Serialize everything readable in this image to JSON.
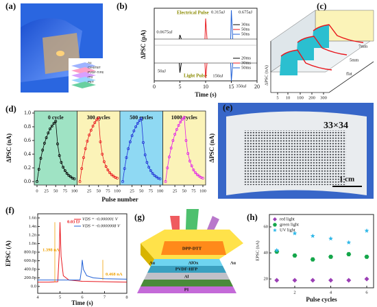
{
  "panel_a": {
    "label": "(a)",
    "layers": [
      "Au",
      "C8-BTBT",
      "PVDF-TrFE",
      "ITO",
      "PET"
    ]
  },
  "panel_e": {
    "label": "(e)",
    "array": "33×34",
    "scale": "1 cm"
  },
  "panel_g": {
    "label": "(g)",
    "layers": [
      "DPP-DTT",
      "AlOx",
      "PVDF-HFP",
      "Al",
      "PI",
      "Au",
      "Au"
    ]
  },
  "chart_data": [
    {
      "type": "pulse",
      "label": "(b)",
      "xlabel": "Time (s)",
      "ylabel": "ΔPSC (pA)",
      "xlim": [
        0,
        20
      ],
      "xticks": [
        0,
        5,
        10,
        15,
        20
      ],
      "series": [
        {
          "name": "Electrical Pulse",
          "color": "#8a8a00",
          "x": [
            5,
            10,
            15
          ],
          "annotations": [
            "0.0675aJ",
            "0.315aJ",
            "0.675aJ"
          ],
          "legend": [
            "30ns",
            "50ns",
            "50ns"
          ],
          "colors": [
            "#000000",
            "#e8151b",
            "#1f5fd6"
          ]
        },
        {
          "name": "Light Pulse",
          "color": "#8a8a00",
          "x": [
            5,
            10,
            15
          ],
          "annotations": [
            "50aJ",
            "150aJ",
            "350aJ"
          ],
          "legend": [
            "20ms",
            "30ms",
            "50ms"
          ],
          "colors": [
            "#000000",
            "#e8151b",
            "#1f5fd6"
          ]
        }
      ]
    },
    {
      "type": "surface3d",
      "label": "(c)",
      "ylabel": "ΔPSC (nA)",
      "xticks": [
        5,
        10,
        100,
        200,
        300
      ],
      "series_names": [
        "7mm",
        "5mm",
        "flat"
      ]
    },
    {
      "type": "multiline",
      "label": "(d)",
      "xlabel": "Pulse number",
      "ylabel": "ΔPSC (nA)",
      "ylabel2": "ΔPSC (nA)",
      "ylim": [
        -0.05,
        1.03
      ],
      "yticks": [
        {
          "value": 0,
          "label": "0.0"
        },
        {
          "value": 0.2,
          "label": "0.2"
        },
        {
          "value": 0.4,
          "label": "0.4"
        },
        {
          "value": 0.6,
          "label": "0.6"
        },
        {
          "value": 0.8,
          "label": "0.8"
        },
        {
          "value": 1,
          "label": "1.0"
        }
      ],
      "xlim": [
        0,
        100
      ],
      "x": [
        0,
        5,
        10,
        15,
        20,
        25,
        30,
        35,
        40,
        45,
        50,
        55,
        60,
        65,
        70,
        75,
        80,
        85,
        90,
        95,
        100
      ],
      "series": [
        {
          "name": "0 cycle",
          "color": "#000000",
          "background": "#9fe3c4",
          "xticks": [
            0,
            25,
            50,
            75,
            100
          ],
          "values": [
            0,
            0.18,
            0.34,
            0.46,
            0.56,
            0.64,
            0.71,
            0.77,
            0.81,
            0.85,
            0.88,
            0.55,
            0.38,
            0.28,
            0.21,
            0.16,
            0.12,
            0.09,
            0.07,
            0.05,
            0.04
          ]
        },
        {
          "name": "300 cycles",
          "color": "#e8151b",
          "background": "#fbf3b8",
          "xticks": [
            25,
            50,
            75,
            100
          ],
          "values": [
            0,
            0.19,
            0.35,
            0.48,
            0.59,
            0.68,
            0.75,
            0.81,
            0.86,
            0.9,
            0.93,
            0.58,
            0.4,
            0.29,
            0.22,
            0.17,
            0.13,
            0.1,
            0.08,
            0.06,
            0.05
          ]
        },
        {
          "name": "500 cycles",
          "color": "#1f2fd6",
          "background": "#8fd9f3",
          "xticks": [
            25,
            50,
            75,
            100
          ],
          "values": [
            0,
            0.19,
            0.35,
            0.48,
            0.58,
            0.67,
            0.74,
            0.8,
            0.85,
            0.89,
            0.92,
            0.57,
            0.39,
            0.28,
            0.21,
            0.16,
            0.12,
            0.09,
            0.07,
            0.05,
            0.04
          ]
        },
        {
          "name": "1000 cycles",
          "color": "#e21ce8",
          "background": "#fbf3b8",
          "xticks": [
            25,
            50,
            75,
            100
          ],
          "values": [
            0,
            0.2,
            0.36,
            0.49,
            0.6,
            0.69,
            0.76,
            0.82,
            0.87,
            0.91,
            0.94,
            0.6,
            0.41,
            0.3,
            0.23,
            0.17,
            0.13,
            0.1,
            0.08,
            0.06,
            0.05
          ]
        }
      ]
    },
    {
      "type": "line",
      "label": "(f)",
      "xlabel": "Time (s)",
      "ylabel": "EPSC (A)",
      "xlim": [
        4,
        8
      ],
      "xticks": [
        4,
        5,
        6,
        7,
        8
      ],
      "ylim": [
        -1.6e-10,
        1.696e-09
      ],
      "yticks": [
        {
          "value": 0,
          "label": "0.0"
        },
        {
          "value": 2e-10,
          "label": "200.0p"
        },
        {
          "value": 4e-10,
          "label": "400.0p"
        },
        {
          "value": 6e-10,
          "label": "600.0p"
        },
        {
          "value": 8e-10,
          "label": "800.0p"
        },
        {
          "value": 1e-09,
          "label": "1.0n"
        },
        {
          "value": 1.2e-09,
          "label": "1.2n"
        },
        {
          "value": 1.4e-09,
          "label": "1.4n"
        },
        {
          "value": 1.6e-09,
          "label": "1.6n"
        }
      ],
      "annotations": [
        "0.03 fJ",
        "1.398 nA",
        "0.468 nA"
      ],
      "series": [
        {
          "name": "VDS = -0.000001 V",
          "color": "#e8151b",
          "x": [
            4,
            4.5,
            4.9,
            4.97,
            5.0,
            5.05,
            5.15,
            5.4,
            6,
            7,
            8
          ],
          "values": [
            1e-10,
            1e-10,
            1.1e-10,
            8e-10,
            1.5e-09,
            7e-10,
            2.5e-10,
            1.5e-10,
            1.2e-10,
            1.1e-10,
            1e-10
          ]
        },
        {
          "name": "VDS = -0.0000008 V",
          "color": "#1f5fd6",
          "x": [
            4,
            5,
            5.9,
            5.97,
            6.0,
            6.05,
            6.2,
            6.5,
            7,
            8
          ],
          "values": [
            1.5e-10,
            1.5e-10,
            1.5e-10,
            4e-10,
            6.2e-10,
            4e-10,
            2.5e-10,
            2e-10,
            1.8e-10,
            1.7e-10
          ]
        }
      ]
    },
    {
      "type": "scatter",
      "label": "(h)",
      "xlabel": "Pulse cycles",
      "ylabel": "EPSC (nA)",
      "xlim": [
        0.59,
        6.38
      ],
      "xticks": [
        2,
        4,
        6
      ],
      "ylim": [
        13.2,
        69.5
      ],
      "yticks": [
        20,
        40,
        60
      ],
      "x": [
        1,
        2,
        3,
        4,
        5,
        6
      ],
      "series": [
        {
          "name": "red light",
          "color": "#9b3fb5",
          "marker": "diamond",
          "values": [
            19,
            19,
            19,
            19,
            19,
            20
          ]
        },
        {
          "name": "green light",
          "color": "#14a64a",
          "marker": "hexagon",
          "values": [
            41,
            38,
            35,
            37,
            39,
            37
          ]
        },
        {
          "name": "UV light",
          "color": "#2fb8e8",
          "marker": "star",
          "values": [
            42,
            55,
            53,
            51,
            48,
            57
          ]
        }
      ]
    }
  ]
}
